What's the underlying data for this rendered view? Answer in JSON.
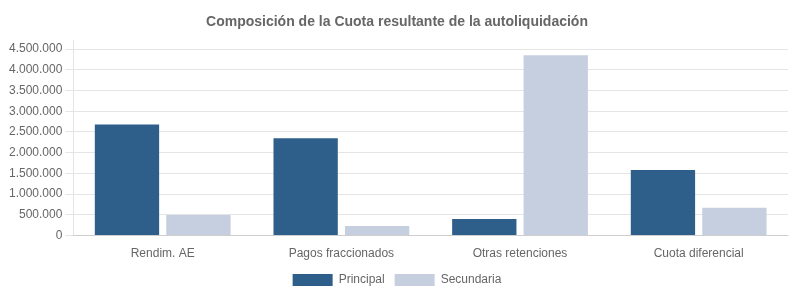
{
  "chart_data": {
    "type": "bar",
    "title": "Composición de la Cuota resultante de la autoliquidación",
    "categories": [
      "Rendim. AE",
      "Pagos fraccionados",
      "Otras retenciones",
      "Cuota diferencial"
    ],
    "series": [
      {
        "name": "Principal",
        "color": "#2e5f8a",
        "values": [
          2680000,
          2350000,
          400000,
          1580000
        ]
      },
      {
        "name": "Secundaria",
        "color": "#c5cfe0",
        "values": [
          500000,
          230000,
          4350000,
          670000
        ]
      }
    ],
    "ylim": [
      0,
      4700000
    ],
    "yticks": [
      0,
      {
        "value": 500000,
        "label": "500.000"
      },
      {
        "value": 1000000,
        "label": "1.000.000"
      },
      {
        "value": 1500000,
        "label": "1.500.000"
      },
      {
        "value": 2000000,
        "label": "2.000.000"
      },
      {
        "value": 2500000,
        "label": "2.500.000"
      },
      {
        "value": 3000000,
        "label": "3.000.000"
      },
      {
        "value": 3500000,
        "label": "3.500.000"
      },
      {
        "value": 4000000,
        "label": "4.000.000"
      },
      {
        "value": 4500000,
        "label": "4.500.000"
      }
    ],
    "grid": true,
    "legend": "bottom"
  }
}
